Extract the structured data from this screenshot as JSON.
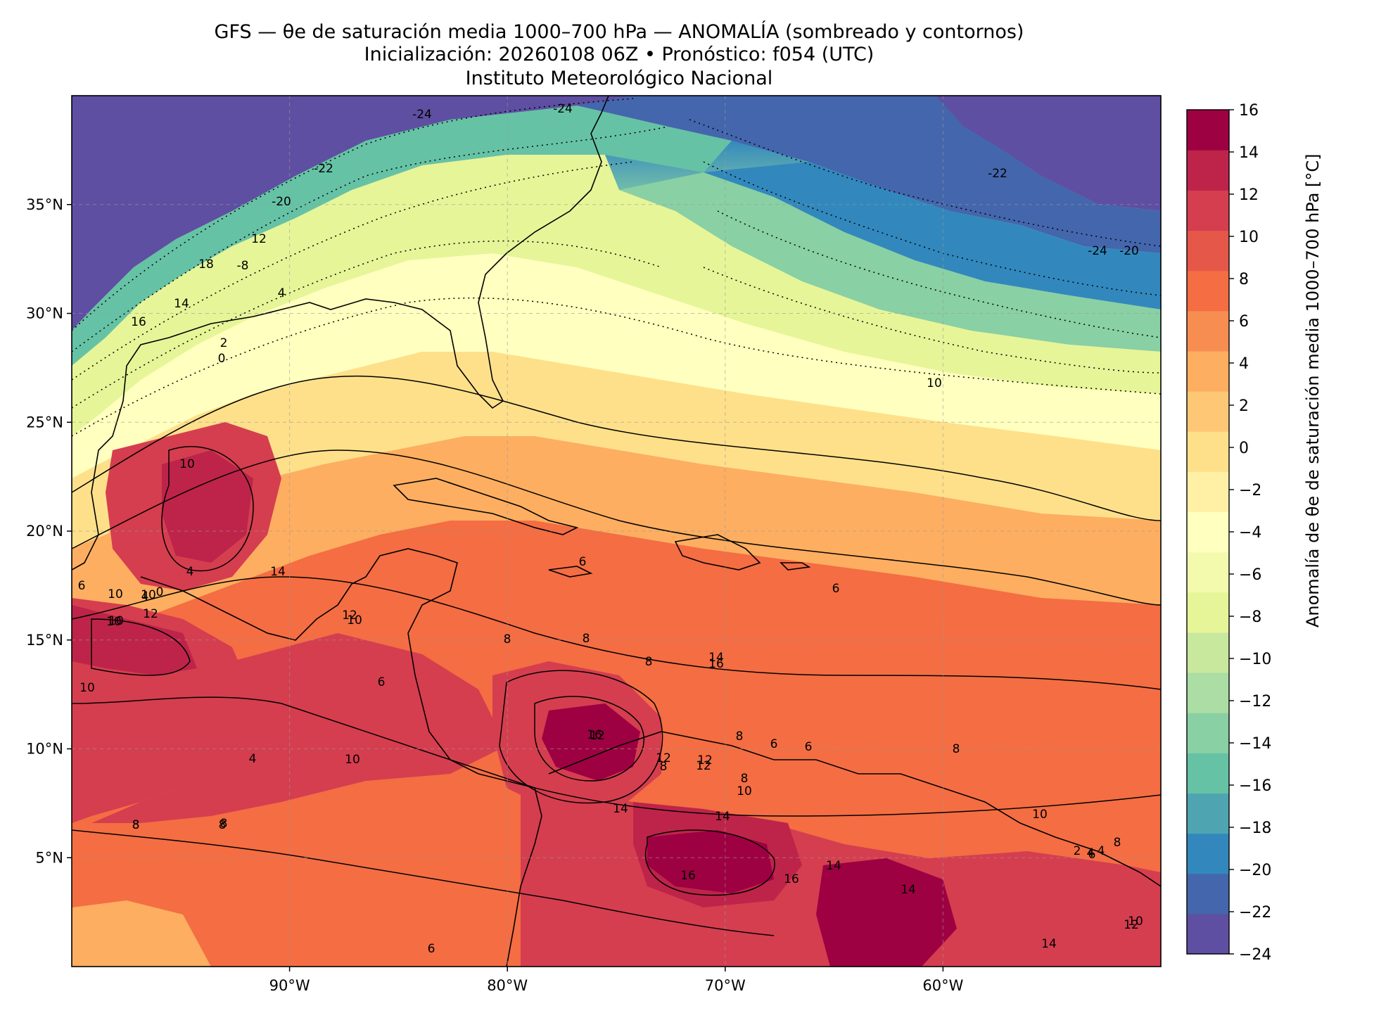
{
  "header": {
    "line1": "GFS — θe de saturación media 1000–700 hPa — ANOMALÍA (sombreado y contornos)",
    "line2": "Inicialización: 20260108 06Z   •   Pronóstico: f054 (UTC)",
    "line3": "Instituto Meteorológico Nacional"
  },
  "map": {
    "lon_range": [
      -100,
      -50
    ],
    "lat_range": [
      0,
      40
    ],
    "lat_ticks": [
      "35°N",
      "30°N",
      "25°N",
      "20°N",
      "15°N",
      "10°N",
      "5°N"
    ],
    "lon_ticks": [
      "90°W",
      "80°W",
      "70°W",
      "60°W"
    ],
    "lat_values": [
      35,
      30,
      25,
      20,
      15,
      10,
      5
    ],
    "lon_values": [
      -90,
      -80,
      -70,
      -60
    ],
    "contour_labels": [
      "-24",
      "-24",
      "-22",
      "-22",
      "-20",
      "-24",
      "-20",
      "16",
      "14",
      "12",
      "10",
      "18",
      "-8",
      "4",
      "2",
      "0",
      "10",
      "4",
      "0",
      "4",
      "6",
      "10",
      "10",
      "10",
      "12",
      "10",
      "10",
      "14",
      "12",
      "6",
      "6",
      "10",
      "6",
      "4",
      "8",
      "8",
      "8",
      "8",
      "16",
      "14",
      "12",
      "8",
      "6",
      "10",
      "16",
      "6",
      "8",
      "8",
      "8",
      "10",
      "8",
      "8",
      "8",
      "10",
      "12",
      "14",
      "14",
      "16",
      "14",
      "12",
      "12",
      "14",
      "16",
      "12",
      "8",
      "6",
      "4",
      "2",
      "4",
      "6",
      "14",
      "10"
    ]
  },
  "colorbar": {
    "label": "Anomalía de θe de saturación media 1000–700 hPa [°C]",
    "ticks": [
      "16",
      "14",
      "12",
      "10",
      "8",
      "6",
      "4",
      "2",
      "0",
      "−2",
      "−4",
      "−6",
      "−8",
      "−10",
      "−12",
      "−14",
      "−16",
      "−18",
      "−20",
      "−22",
      "−24"
    ],
    "colors": [
      "#5e4fa2",
      "#4466ad",
      "#3288bd",
      "#4ea5b1",
      "#66c2a5",
      "#89d0a4",
      "#abdda4",
      "#c8e89e",
      "#e6f598",
      "#f3faad",
      "#ffffbf",
      "#fff0a6",
      "#fee08b",
      "#fdc776",
      "#fdae61",
      "#f88d52",
      "#f46d43",
      "#e55749",
      "#d53e4f",
      "#be2449",
      "#9e0142"
    ]
  }
}
